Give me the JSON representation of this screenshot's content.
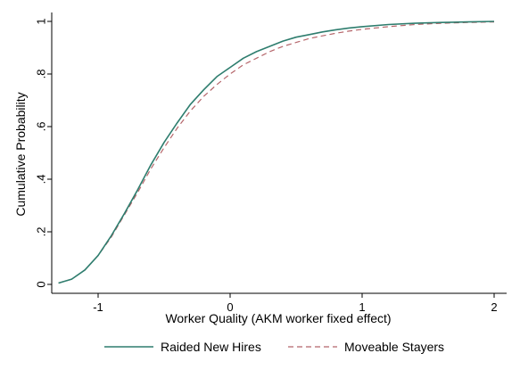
{
  "chart_data": {
    "type": "line",
    "title": "",
    "xlabel": "Worker Quality (AKM worker fixed effect)",
    "ylabel": "Cumulative Probability",
    "xlim": [
      -1.3,
      2.05
    ],
    "ylim": [
      0,
      1
    ],
    "x_ticks": [
      -1,
      0,
      1,
      2
    ],
    "x_tick_labels": [
      "-1",
      "0",
      "1",
      "2"
    ],
    "y_ticks": [
      0,
      0.2,
      0.4,
      0.6,
      0.8,
      1
    ],
    "y_tick_labels": [
      "0",
      ".2",
      ".4",
      ".6",
      ".8",
      "1"
    ],
    "grid": false,
    "legend_position": "bottom",
    "series": [
      {
        "name": "Raided New Hires",
        "color": "#2e7d6e",
        "dash": "solid",
        "x": [
          -1.3,
          -1.2,
          -1.1,
          -1.0,
          -0.9,
          -0.8,
          -0.7,
          -0.6,
          -0.5,
          -0.4,
          -0.3,
          -0.2,
          -0.1,
          0.0,
          0.1,
          0.2,
          0.3,
          0.4,
          0.5,
          0.6,
          0.7,
          0.8,
          0.9,
          1.0,
          1.2,
          1.4,
          1.6,
          1.8,
          2.0
        ],
        "values": [
          0.005,
          0.02,
          0.055,
          0.11,
          0.185,
          0.27,
          0.36,
          0.455,
          0.54,
          0.615,
          0.685,
          0.74,
          0.79,
          0.825,
          0.86,
          0.885,
          0.905,
          0.925,
          0.94,
          0.95,
          0.96,
          0.968,
          0.975,
          0.98,
          0.988,
          0.993,
          0.996,
          0.998,
          1.0
        ]
      },
      {
        "name": "Moveable Stayers",
        "color": "#b5656a",
        "dash": "dashed",
        "x": [
          -1.3,
          -1.2,
          -1.1,
          -1.0,
          -0.9,
          -0.8,
          -0.7,
          -0.6,
          -0.5,
          -0.4,
          -0.3,
          -0.2,
          -0.1,
          0.0,
          0.1,
          0.2,
          0.3,
          0.4,
          0.5,
          0.6,
          0.7,
          0.8,
          0.9,
          1.0,
          1.2,
          1.4,
          1.6,
          1.8,
          2.0
        ],
        "values": [
          0.005,
          0.02,
          0.055,
          0.11,
          0.18,
          0.265,
          0.35,
          0.44,
          0.52,
          0.595,
          0.66,
          0.715,
          0.76,
          0.8,
          0.835,
          0.86,
          0.885,
          0.905,
          0.92,
          0.935,
          0.945,
          0.955,
          0.963,
          0.97,
          0.98,
          0.988,
          0.993,
          0.996,
          0.998
        ]
      }
    ]
  }
}
